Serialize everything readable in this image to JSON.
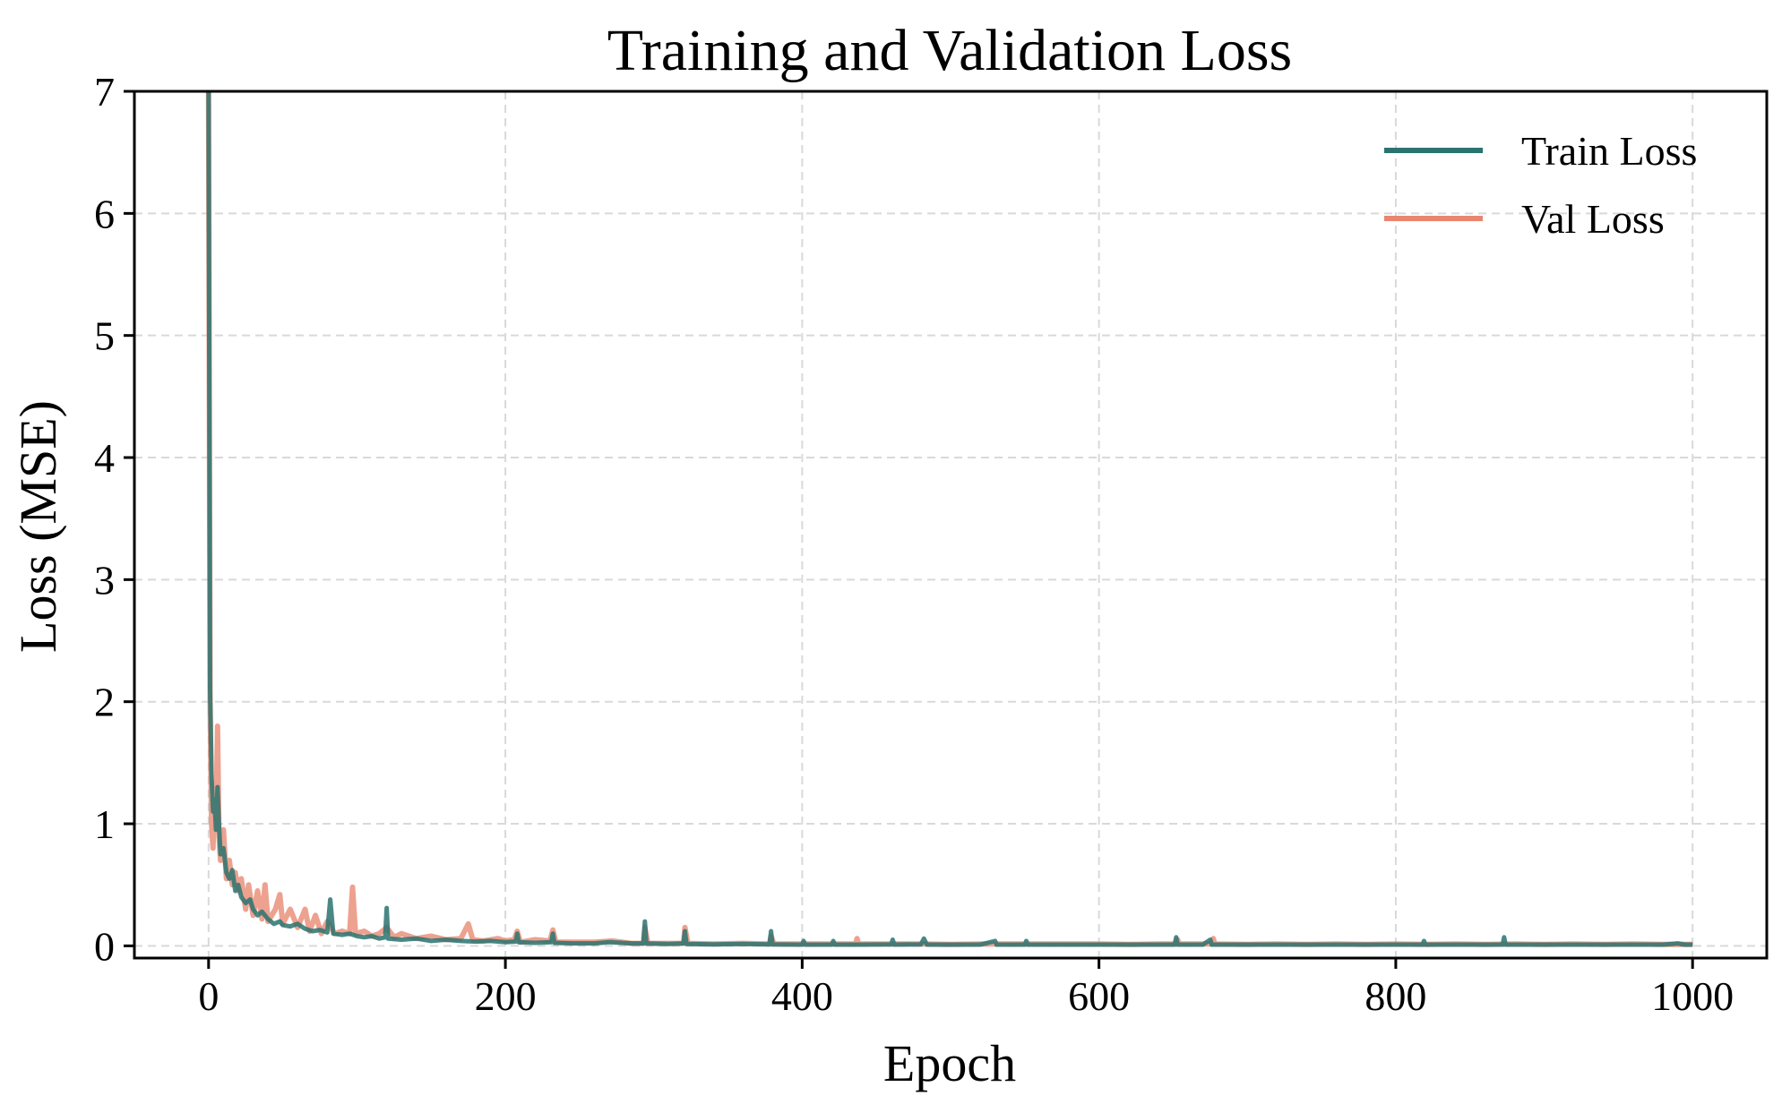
{
  "chart_data": {
    "type": "line",
    "title": "Training and Validation Loss",
    "xlabel": "Epoch",
    "ylabel": "Loss (MSE)",
    "xlim": [
      -50,
      1050
    ],
    "ylim": [
      -0.1,
      7
    ],
    "xticks": [
      0,
      200,
      400,
      600,
      800,
      1000
    ],
    "yticks": [
      0,
      1,
      2,
      3,
      4,
      5,
      6,
      7
    ],
    "grid": true,
    "legend_position": "top-right",
    "series": [
      {
        "name": "Train Loss",
        "color": "#2a7370",
        "points": [
          [
            0,
            7.0
          ],
          [
            1,
            2.1
          ],
          [
            2,
            1.4
          ],
          [
            3,
            1.1
          ],
          [
            4,
            1.2
          ],
          [
            5,
            0.95
          ],
          [
            6,
            1.3
          ],
          [
            7,
            1.0
          ],
          [
            8,
            0.75
          ],
          [
            10,
            0.8
          ],
          [
            12,
            0.6
          ],
          [
            14,
            0.55
          ],
          [
            16,
            0.62
          ],
          [
            18,
            0.45
          ],
          [
            20,
            0.5
          ],
          [
            22,
            0.4
          ],
          [
            25,
            0.35
          ],
          [
            28,
            0.38
          ],
          [
            30,
            0.3
          ],
          [
            33,
            0.25
          ],
          [
            36,
            0.28
          ],
          [
            40,
            0.22
          ],
          [
            44,
            0.18
          ],
          [
            48,
            0.2
          ],
          [
            50,
            0.17
          ],
          [
            55,
            0.16
          ],
          [
            60,
            0.18
          ],
          [
            65,
            0.14
          ],
          [
            70,
            0.12
          ],
          [
            75,
            0.13
          ],
          [
            80,
            0.11
          ],
          [
            82,
            0.38
          ],
          [
            84,
            0.1
          ],
          [
            90,
            0.09
          ],
          [
            95,
            0.1
          ],
          [
            100,
            0.08
          ],
          [
            105,
            0.07
          ],
          [
            110,
            0.08
          ],
          [
            115,
            0.06
          ],
          [
            119,
            0.07
          ],
          [
            120,
            0.31
          ],
          [
            121,
            0.06
          ],
          [
            130,
            0.05
          ],
          [
            140,
            0.06
          ],
          [
            150,
            0.04
          ],
          [
            160,
            0.05
          ],
          [
            170,
            0.04
          ],
          [
            180,
            0.035
          ],
          [
            190,
            0.04
          ],
          [
            200,
            0.03
          ],
          [
            207,
            0.035
          ],
          [
            208,
            0.1
          ],
          [
            209,
            0.03
          ],
          [
            220,
            0.025
          ],
          [
            231,
            0.03
          ],
          [
            232,
            0.1
          ],
          [
            233,
            0.025
          ],
          [
            245,
            0.02
          ],
          [
            260,
            0.02
          ],
          [
            270,
            0.03
          ],
          [
            285,
            0.02
          ],
          [
            293,
            0.02
          ],
          [
            294,
            0.2
          ],
          [
            295,
            0.02
          ],
          [
            310,
            0.015
          ],
          [
            320,
            0.02
          ],
          [
            321,
            0.12
          ],
          [
            322,
            0.015
          ],
          [
            340,
            0.012
          ],
          [
            360,
            0.015
          ],
          [
            378,
            0.012
          ],
          [
            379,
            0.12
          ],
          [
            380,
            0.012
          ],
          [
            400,
            0.01
          ],
          [
            401,
            0.04
          ],
          [
            402,
            0.01
          ],
          [
            420,
            0.01
          ],
          [
            421,
            0.04
          ],
          [
            422,
            0.01
          ],
          [
            440,
            0.01
          ],
          [
            460,
            0.012
          ],
          [
            461,
            0.05
          ],
          [
            462,
            0.01
          ],
          [
            480,
            0.012
          ],
          [
            482,
            0.06
          ],
          [
            484,
            0.01
          ],
          [
            500,
            0.01
          ],
          [
            520,
            0.01
          ],
          [
            530,
            0.04
          ],
          [
            531,
            0.01
          ],
          [
            550,
            0.01
          ],
          [
            551,
            0.04
          ],
          [
            552,
            0.01
          ],
          [
            580,
            0.01
          ],
          [
            600,
            0.01
          ],
          [
            620,
            0.01
          ],
          [
            640,
            0.01
          ],
          [
            651,
            0.01
          ],
          [
            652,
            0.07
          ],
          [
            653,
            0.01
          ],
          [
            670,
            0.01
          ],
          [
            675,
            0.05
          ],
          [
            676,
            0.01
          ],
          [
            700,
            0.01
          ],
          [
            720,
            0.01
          ],
          [
            740,
            0.01
          ],
          [
            760,
            0.01
          ],
          [
            780,
            0.01
          ],
          [
            800,
            0.01
          ],
          [
            818,
            0.01
          ],
          [
            819,
            0.04
          ],
          [
            820,
            0.01
          ],
          [
            840,
            0.01
          ],
          [
            860,
            0.01
          ],
          [
            872,
            0.01
          ],
          [
            873,
            0.07
          ],
          [
            874,
            0.01
          ],
          [
            900,
            0.01
          ],
          [
            920,
            0.01
          ],
          [
            940,
            0.01
          ],
          [
            960,
            0.01
          ],
          [
            980,
            0.01
          ],
          [
            990,
            0.02
          ],
          [
            995,
            0.01
          ],
          [
            1000,
            0.01
          ]
        ]
      },
      {
        "name": "Val Loss",
        "color": "#e8866f",
        "points": [
          [
            0,
            7.0
          ],
          [
            1,
            2.0
          ],
          [
            2,
            1.0
          ],
          [
            3,
            0.8
          ],
          [
            4,
            1.3
          ],
          [
            5,
            1.0
          ],
          [
            6,
            1.8
          ],
          [
            7,
            0.9
          ],
          [
            8,
            0.7
          ],
          [
            10,
            0.95
          ],
          [
            12,
            0.55
          ],
          [
            14,
            0.7
          ],
          [
            16,
            0.5
          ],
          [
            18,
            0.6
          ],
          [
            20,
            0.45
          ],
          [
            22,
            0.55
          ],
          [
            25,
            0.3
          ],
          [
            27,
            0.5
          ],
          [
            30,
            0.25
          ],
          [
            33,
            0.45
          ],
          [
            36,
            0.22
          ],
          [
            38,
            0.5
          ],
          [
            40,
            0.2
          ],
          [
            45,
            0.3
          ],
          [
            48,
            0.42
          ],
          [
            50,
            0.18
          ],
          [
            55,
            0.3
          ],
          [
            60,
            0.15
          ],
          [
            65,
            0.3
          ],
          [
            68,
            0.12
          ],
          [
            72,
            0.25
          ],
          [
            76,
            0.1
          ],
          [
            80,
            0.2
          ],
          [
            85,
            0.1
          ],
          [
            90,
            0.12
          ],
          [
            95,
            0.1
          ],
          [
            97,
            0.48
          ],
          [
            99,
            0.1
          ],
          [
            105,
            0.12
          ],
          [
            110,
            0.08
          ],
          [
            115,
            0.1
          ],
          [
            120,
            0.15
          ],
          [
            125,
            0.07
          ],
          [
            130,
            0.1
          ],
          [
            140,
            0.06
          ],
          [
            150,
            0.08
          ],
          [
            160,
            0.05
          ],
          [
            170,
            0.06
          ],
          [
            175,
            0.18
          ],
          [
            178,
            0.05
          ],
          [
            185,
            0.04
          ],
          [
            195,
            0.06
          ],
          [
            200,
            0.04
          ],
          [
            206,
            0.05
          ],
          [
            208,
            0.12
          ],
          [
            210,
            0.03
          ],
          [
            220,
            0.05
          ],
          [
            230,
            0.04
          ],
          [
            232,
            0.13
          ],
          [
            234,
            0.03
          ],
          [
            245,
            0.03
          ],
          [
            260,
            0.03
          ],
          [
            272,
            0.04
          ],
          [
            285,
            0.02
          ],
          [
            293,
            0.02
          ],
          [
            294,
            0.15
          ],
          [
            296,
            0.02
          ],
          [
            310,
            0.02
          ],
          [
            320,
            0.02
          ],
          [
            321,
            0.15
          ],
          [
            323,
            0.02
          ],
          [
            340,
            0.015
          ],
          [
            360,
            0.02
          ],
          [
            378,
            0.015
          ],
          [
            379,
            0.08
          ],
          [
            381,
            0.015
          ],
          [
            400,
            0.015
          ],
          [
            420,
            0.015
          ],
          [
            436,
            0.015
          ],
          [
            437,
            0.06
          ],
          [
            438,
            0.015
          ],
          [
            460,
            0.015
          ],
          [
            480,
            0.015
          ],
          [
            500,
            0.012
          ],
          [
            520,
            0.015
          ],
          [
            550,
            0.015
          ],
          [
            580,
            0.015
          ],
          [
            600,
            0.015
          ],
          [
            620,
            0.012
          ],
          [
            640,
            0.015
          ],
          [
            652,
            0.015
          ],
          [
            653,
            0.05
          ],
          [
            654,
            0.015
          ],
          [
            676,
            0.015
          ],
          [
            677,
            0.06
          ],
          [
            678,
            0.015
          ],
          [
            700,
            0.012
          ],
          [
            720,
            0.015
          ],
          [
            740,
            0.012
          ],
          [
            760,
            0.015
          ],
          [
            780,
            0.012
          ],
          [
            800,
            0.015
          ],
          [
            820,
            0.012
          ],
          [
            840,
            0.015
          ],
          [
            860,
            0.012
          ],
          [
            880,
            0.015
          ],
          [
            900,
            0.012
          ],
          [
            920,
            0.015
          ],
          [
            940,
            0.012
          ],
          [
            960,
            0.015
          ],
          [
            980,
            0.012
          ],
          [
            1000,
            0.012
          ]
        ]
      }
    ]
  }
}
